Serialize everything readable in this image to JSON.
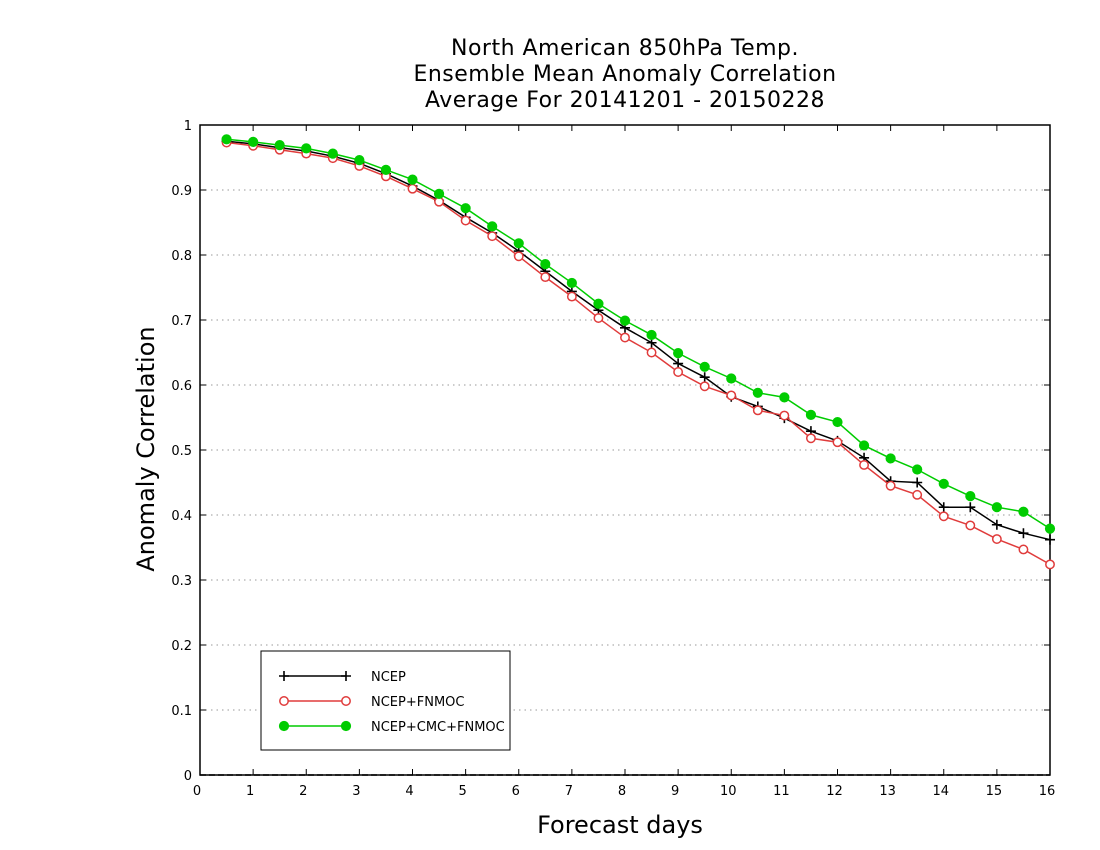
{
  "chart_data": {
    "type": "line",
    "title": [
      "North American 850hPa Temp.",
      "Ensemble Mean Anomaly Correlation",
      "Average For 20141201 - 20150228"
    ],
    "xlabel": "Forecast days",
    "ylabel": "Anomaly Correlation",
    "xlim": [
      0,
      16
    ],
    "ylim": [
      0,
      1
    ],
    "xticks": [
      "0",
      "1",
      "2",
      "3",
      "4",
      "5",
      "6",
      "7",
      "8",
      "9",
      "10",
      "11",
      "12",
      "13",
      "14",
      "15",
      "16"
    ],
    "yticks": [
      "0",
      "0.1",
      "0.2",
      "0.3",
      "0.4",
      "0.5",
      "0.6",
      "0.7",
      "0.8",
      "0.9",
      "1"
    ],
    "grid": "horizontal dotted",
    "legend_position": "bottom-left",
    "x": [
      0.5,
      1,
      1.5,
      2,
      2.5,
      3,
      3.5,
      4,
      4.5,
      5,
      5.5,
      6,
      6.5,
      7,
      7.5,
      8,
      8.5,
      9,
      9.5,
      10,
      10.5,
      11,
      11.5,
      12,
      12.5,
      13,
      13.5,
      14,
      14.5,
      15,
      15.5,
      16
    ],
    "series": [
      {
        "name": "NCEP",
        "color": "#000000",
        "marker": "plus",
        "values": [
          0.975,
          0.971,
          0.965,
          0.96,
          0.952,
          0.941,
          0.925,
          0.906,
          0.884,
          0.858,
          0.834,
          0.806,
          0.775,
          0.744,
          0.715,
          0.688,
          0.665,
          0.633,
          0.612,
          0.582,
          0.567,
          0.549,
          0.529,
          0.514,
          0.488,
          0.452,
          0.45,
          0.412,
          0.412,
          0.385,
          0.372,
          0.362
        ]
      },
      {
        "name": "NCEP+FNMOC",
        "color": "#e03c3c",
        "marker": "open-circle",
        "values": [
          0.973,
          0.968,
          0.962,
          0.956,
          0.949,
          0.937,
          0.921,
          0.902,
          0.882,
          0.853,
          0.829,
          0.798,
          0.766,
          0.736,
          0.703,
          0.673,
          0.65,
          0.62,
          0.598,
          0.584,
          0.561,
          0.553,
          0.518,
          0.512,
          0.477,
          0.445,
          0.431,
          0.398,
          0.384,
          0.363,
          0.347,
          0.324
        ]
      },
      {
        "name": "NCEP+CMC+FNMOC",
        "color": "#00cc00",
        "marker": "filled-circle",
        "values": [
          0.978,
          0.974,
          0.969,
          0.964,
          0.956,
          0.946,
          0.931,
          0.916,
          0.894,
          0.872,
          0.844,
          0.818,
          0.786,
          0.757,
          0.725,
          0.699,
          0.677,
          0.649,
          0.628,
          0.61,
          0.588,
          0.581,
          0.554,
          0.543,
          0.507,
          0.487,
          0.47,
          0.448,
          0.429,
          0.412,
          0.405,
          0.379
        ]
      }
    ]
  }
}
